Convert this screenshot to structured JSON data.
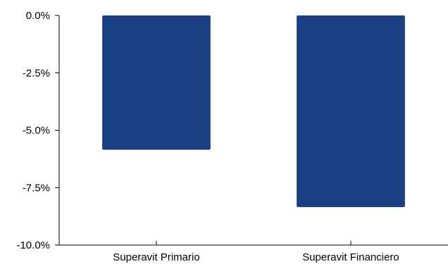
{
  "chart_data": {
    "type": "bar",
    "title": "",
    "xlabel": "",
    "ylabel": "",
    "categories": [
      "Superavit Primario",
      "Superavit Financiero"
    ],
    "values": [
      -5.85,
      -8.35
    ],
    "ylim": [
      -10.0,
      0.0
    ],
    "yticks": [
      0.0,
      -2.5,
      -5.0,
      -7.5,
      -10.0
    ],
    "ytick_labels": [
      "0.0%",
      "-2.5%",
      "-5.0%",
      "-7.5%",
      "-10.0%"
    ],
    "grid": false,
    "legend": "none",
    "colors": {
      "bar": "#1a3f85",
      "axis": "#000000"
    }
  }
}
